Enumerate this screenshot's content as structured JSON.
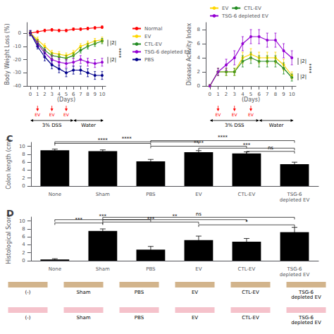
{
  "chart_data": [
    {
      "type": "line",
      "xlabel": "(Days)",
      "ylabel": "Body Weight Loss (%)",
      "x": [
        0,
        1,
        2,
        3,
        4,
        5,
        6,
        7,
        8,
        9,
        10
      ],
      "xlim": [
        -0.5,
        10.5
      ],
      "xticks": [
        0,
        1,
        2,
        3,
        4,
        5,
        6,
        7,
        8,
        9,
        10
      ],
      "ylim": [
        -40,
        8
      ],
      "yticks": [
        -40,
        -30,
        -20,
        -10,
        0
      ],
      "grid": false,
      "legend": "right",
      "marker": "circle",
      "series": [
        {
          "name": "Normal",
          "color": "#FF0000",
          "values": [
            0,
            1,
            2,
            2.5,
            2,
            2,
            3,
            3,
            3.5,
            4,
            4.5
          ],
          "errors": [
            1,
            1,
            1,
            1,
            1,
            1,
            1,
            1,
            1,
            1,
            1
          ]
        },
        {
          "name": "EV",
          "color": "#FFD700",
          "values": [
            0,
            -5,
            -10,
            -15,
            -16,
            -17,
            -15,
            -10,
            -8,
            -6,
            -5
          ],
          "errors": [
            1.5,
            2,
            2,
            2,
            2,
            2,
            2,
            2,
            2,
            2,
            2
          ]
        },
        {
          "name": "CTL-EV",
          "color": "#228B22",
          "values": [
            0,
            -7,
            -13,
            -17,
            -18,
            -19,
            -17,
            -13,
            -10,
            -8,
            -6
          ],
          "errors": [
            1.5,
            2,
            2,
            2,
            2,
            2,
            2,
            2,
            2,
            2,
            2
          ]
        },
        {
          "name": "TSG-6 depleted EV",
          "color": "#9400D3",
          "values": [
            0,
            -8,
            -15,
            -20,
            -22,
            -23,
            -22,
            -20,
            -22,
            -23,
            -22
          ],
          "errors": [
            2,
            2,
            3,
            3,
            3,
            3,
            3,
            3,
            3,
            3,
            3
          ]
        },
        {
          "name": "PBS",
          "color": "#00008B",
          "values": [
            0,
            -10,
            -18,
            -24,
            -27,
            -30,
            -28,
            -28,
            -30,
            -32,
            -32
          ],
          "errors": [
            2,
            2,
            3,
            3,
            3,
            3,
            3,
            3,
            3,
            3,
            3
          ]
        }
      ],
      "annotations": [
        {
          "text": "3% DSS",
          "span": [
            0,
            6
          ]
        },
        {
          "text": "Water",
          "span": [
            6,
            10.2
          ]
        },
        {
          "text": "EV",
          "x": 1
        },
        {
          "text": "EV",
          "x": 3
        },
        {
          "text": "EV",
          "x": 5
        },
        {
          "text": "|2|",
          "yspan": [
            -10,
            -5
          ]
        },
        {
          "text": "|2|",
          "yspan": [
            -23,
            -18
          ]
        },
        {
          "text": "****",
          "y": -15
        }
      ]
    },
    {
      "type": "line",
      "xlabel": "(Days)",
      "ylabel": "Disease Activity Index",
      "x": [
        0,
        1,
        2,
        3,
        4,
        5,
        6,
        7,
        8,
        9,
        10
      ],
      "xlim": [
        -0.5,
        10.5
      ],
      "xticks": [
        0,
        1,
        2,
        3,
        4,
        5,
        6,
        7,
        8,
        9,
        10
      ],
      "ylim": [
        0,
        9
      ],
      "yticks": [
        0,
        2,
        4,
        6,
        8
      ],
      "grid": false,
      "legend": "top",
      "marker": "circle",
      "series": [
        {
          "name": "EV",
          "color": "#FFD700",
          "values": [
            0,
            2,
            2,
            2,
            4,
            4.5,
            4,
            4,
            4,
            3,
            1.5
          ],
          "errors": [
            0.2,
            0.5,
            0.5,
            0.5,
            0.8,
            0.8,
            0.8,
            0.8,
            0.8,
            0.8,
            0.5
          ]
        },
        {
          "name": "CTL-EV",
          "color": "#228B22",
          "values": [
            0,
            2,
            2,
            2,
            3.5,
            4,
            3.5,
            3.5,
            3.5,
            2.5,
            1.2
          ],
          "errors": [
            0.2,
            0.5,
            0.5,
            0.5,
            0.8,
            0.8,
            0.8,
            0.8,
            0.8,
            0.8,
            0.5
          ]
        },
        {
          "name": "TSG-6 depleted EV",
          "color": "#9400D3",
          "values": [
            0,
            2,
            3,
            4,
            6,
            7,
            7,
            6.5,
            6.5,
            5,
            4
          ],
          "errors": [
            0.2,
            0.5,
            0.8,
            1,
            1,
            1,
            1,
            1,
            1,
            1,
            1
          ]
        }
      ],
      "annotations": [
        {
          "text": "3% DSS",
          "span": [
            0,
            6
          ]
        },
        {
          "text": "Water",
          "span": [
            6,
            10.2
          ]
        },
        {
          "text": "EV",
          "x": 1
        },
        {
          "text": "EV",
          "x": 3
        },
        {
          "text": "EV",
          "x": 5
        },
        {
          "text": "|2|",
          "yspan": [
            3.0,
            4.0
          ]
        },
        {
          "text": "|2|",
          "yspan": [
            0.8,
            1.8
          ]
        },
        {
          "text": "****",
          "y": 2.5
        }
      ]
    },
    {
      "type": "bar",
      "title": "C",
      "ylabel": "Colon length (cm)",
      "categories": [
        "None",
        "Sham",
        "PBS",
        "EV",
        "CTL-EV",
        "TSG-6\ndepleted EV"
      ],
      "values": [
        9.0,
        8.8,
        6.2,
        8.5,
        8.2,
        5.5
      ],
      "errors": [
        0.3,
        0.3,
        0.5,
        0.4,
        0.4,
        0.5
      ],
      "color": "#000000",
      "ylim": [
        0,
        11
      ],
      "yticks": [
        0,
        2,
        4,
        6,
        8,
        10
      ],
      "grid": false,
      "annotations": [
        {
          "text": "****",
          "from": "None",
          "to": "PBS",
          "y": 10.2
        },
        {
          "text": "****",
          "from": "None",
          "to": "EV",
          "y": 10.6
        },
        {
          "text": "****",
          "from": "PBS",
          "to": "CTL-EV",
          "y": 9.5
        },
        {
          "text": "****",
          "from": "PBS",
          "to": "TSG-6\ndepleted EV",
          "y": 10.9
        },
        {
          "text": "***",
          "from": "EV",
          "to": "TSG-6\ndepleted EV",
          "y": 9.0
        },
        {
          "text": "ns",
          "from": "CTL-EV",
          "to": "TSG-6\ndepleted EV",
          "y": 8.2
        }
      ]
    },
    {
      "type": "bar",
      "title": "D",
      "ylabel": "Histological Score",
      "categories": [
        "None",
        "Sham",
        "PBS",
        "EV",
        "CTL-EV",
        "TSG-6\ndepleted EV"
      ],
      "values": [
        0.3,
        7.5,
        2.8,
        5.2,
        4.8,
        7.2
      ],
      "errors": [
        0.2,
        0.5,
        0.8,
        1.0,
        0.8,
        1.2
      ],
      "color": "#000000",
      "ylim": [
        0,
        11
      ],
      "yticks": [
        0,
        2,
        4,
        6,
        8,
        10
      ],
      "grid": false,
      "annotations": [
        {
          "text": "***",
          "from": "None",
          "to": "Sham",
          "y": 9.0
        },
        {
          "text": "***",
          "from": "None",
          "to": "PBS",
          "y": 9.8
        },
        {
          "text": "***",
          "from": "Sham",
          "to": "EV",
          "y": 9.2
        },
        {
          "text": "**",
          "from": "Sham",
          "to": "CTL-EV",
          "y": 9.8
        },
        {
          "text": "ns",
          "from": "Sham",
          "to": "TSG-6\ndepleted EV",
          "y": 10.4
        },
        {
          "text": "*",
          "from": "EV",
          "to": "TSG-6\ndepleted EV",
          "y": 8.5
        }
      ]
    },
    {
      "type": "image",
      "color": "#D2B48C",
      "annotations": [
        "(-)",
        "Sham",
        "PBS",
        "EV",
        "CTL-EV",
        "TSG-6\ndepleted EV"
      ]
    },
    {
      "type": "image",
      "color": "#F5C2CB",
      "annotations": [
        "(-)",
        "Sham",
        "PBS",
        "EV",
        "CTL-EV",
        "TSG-6\ndepleted EV"
      ]
    }
  ]
}
